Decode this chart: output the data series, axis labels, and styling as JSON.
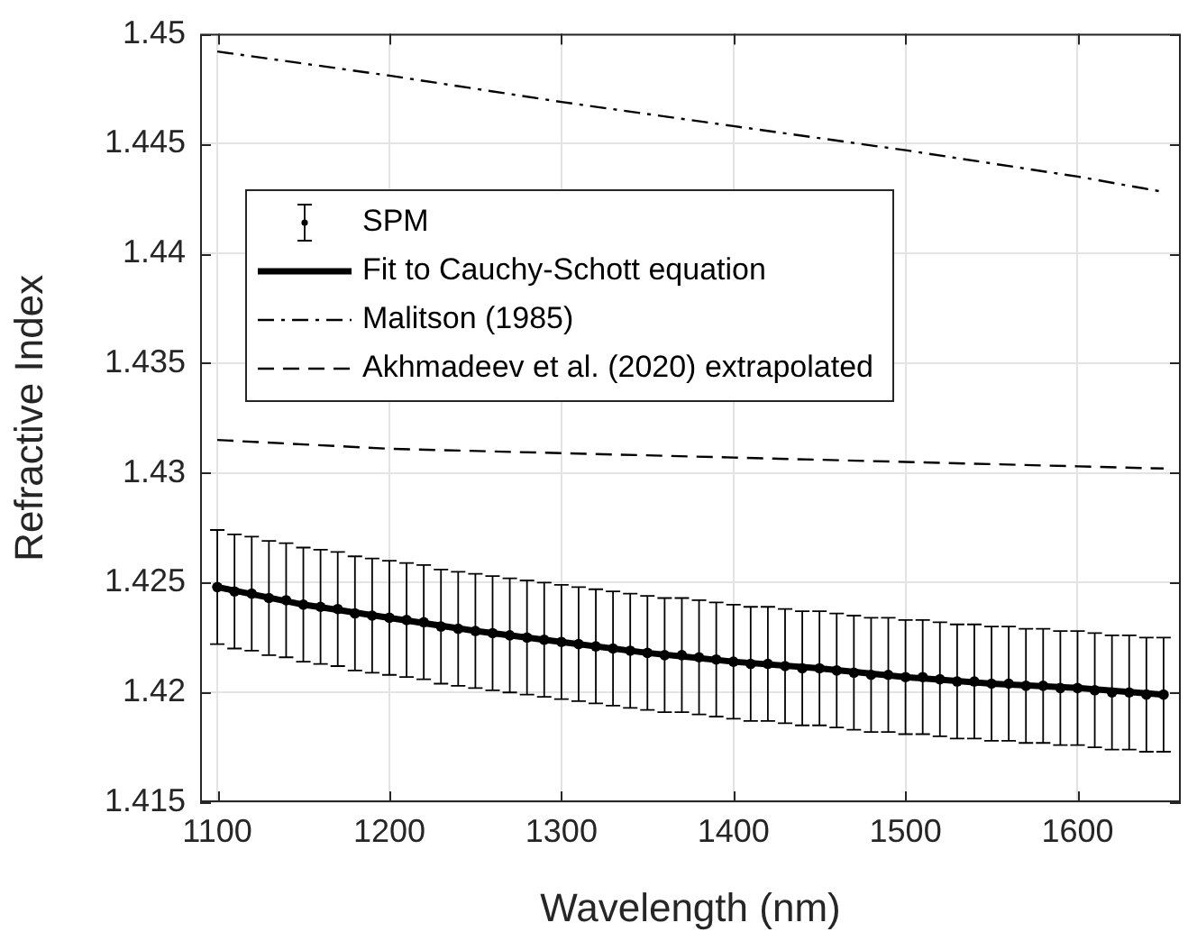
{
  "chart_data": {
    "type": "line",
    "xlabel": "Wavelength (nm)",
    "ylabel": "Refractive Index",
    "xlim": [
      1090,
      1660
    ],
    "xticks": [
      1100,
      1200,
      1300,
      1400,
      1500,
      1600
    ],
    "ylim": [
      1.415,
      1.45
    ],
    "yticks": [
      1.415,
      1.42,
      1.425,
      1.43,
      1.435,
      1.44,
      1.445,
      1.45
    ],
    "grid": true,
    "legend": "top left",
    "series": [
      {
        "name": "SPM",
        "type": "scatter",
        "color": "#000000",
        "marker": "circle",
        "x": [
          1100,
          1110,
          1120,
          1130,
          1140,
          1150,
          1160,
          1170,
          1180,
          1190,
          1200,
          1210,
          1220,
          1230,
          1240,
          1250,
          1260,
          1270,
          1280,
          1290,
          1300,
          1310,
          1320,
          1330,
          1340,
          1350,
          1360,
          1370,
          1380,
          1390,
          1400,
          1410,
          1420,
          1430,
          1440,
          1450,
          1460,
          1470,
          1480,
          1490,
          1500,
          1510,
          1520,
          1530,
          1540,
          1550,
          1560,
          1570,
          1580,
          1590,
          1600,
          1610,
          1620,
          1630,
          1640,
          1650
        ],
        "values": [
          1.4248,
          1.4246,
          1.4245,
          1.4243,
          1.4242,
          1.424,
          1.4239,
          1.4238,
          1.4236,
          1.4235,
          1.4234,
          1.4233,
          1.4232,
          1.423,
          1.4229,
          1.4228,
          1.4227,
          1.4226,
          1.4225,
          1.4224,
          1.4223,
          1.4222,
          1.4221,
          1.422,
          1.4219,
          1.4218,
          1.4217,
          1.4217,
          1.4216,
          1.4215,
          1.4214,
          1.4213,
          1.4213,
          1.4212,
          1.4211,
          1.4211,
          1.421,
          1.4209,
          1.4208,
          1.4208,
          1.4207,
          1.4207,
          1.4206,
          1.4205,
          1.4205,
          1.4204,
          1.4204,
          1.4203,
          1.4203,
          1.4202,
          1.4202,
          1.4201,
          1.42,
          1.42,
          1.4199,
          1.4199
        ],
        "errors": [
          0.0026,
          0.0026,
          0.0026,
          0.0026,
          0.0026,
          0.0026,
          0.0026,
          0.0026,
          0.0026,
          0.0026,
          0.0026,
          0.0026,
          0.0026,
          0.0026,
          0.0026,
          0.0026,
          0.0026,
          0.0026,
          0.0026,
          0.0026,
          0.0026,
          0.0026,
          0.0026,
          0.0026,
          0.0026,
          0.0026,
          0.0026,
          0.0026,
          0.0026,
          0.0026,
          0.0026,
          0.0026,
          0.0026,
          0.0026,
          0.0026,
          0.0026,
          0.0026,
          0.0026,
          0.0026,
          0.0026,
          0.0026,
          0.0026,
          0.0026,
          0.0026,
          0.0026,
          0.0026,
          0.0026,
          0.0026,
          0.0026,
          0.0026,
          0.0026,
          0.0026,
          0.0026,
          0.0026,
          0.0026,
          0.0026
        ]
      },
      {
        "name": "Fit to Cauchy-Schott equation",
        "type": "line",
        "color": "#000000",
        "line_style": "solid",
        "x": [
          1100,
          1150,
          1200,
          1250,
          1300,
          1350,
          1400,
          1450,
          1500,
          1550,
          1600,
          1650
        ],
        "values": [
          1.4248,
          1.424,
          1.4234,
          1.4228,
          1.4223,
          1.4218,
          1.4214,
          1.4211,
          1.4207,
          1.4204,
          1.4202,
          1.4199
        ]
      },
      {
        "name": "Malitson (1985)",
        "type": "line",
        "color": "#000000",
        "line_style": "dashdot",
        "x": [
          1100,
          1200,
          1300,
          1400,
          1500,
          1600,
          1650
        ],
        "values": [
          1.4492,
          1.4481,
          1.4469,
          1.4458,
          1.4447,
          1.4435,
          1.4428
        ]
      },
      {
        "name": "Akhmadeev et al. (2020) extrapolated",
        "type": "line",
        "color": "#000000",
        "line_style": "dashed",
        "x": [
          1100,
          1200,
          1300,
          1400,
          1500,
          1600,
          1650
        ],
        "values": [
          1.4315,
          1.4311,
          1.4309,
          1.4307,
          1.4305,
          1.4303,
          1.4302
        ]
      }
    ]
  }
}
